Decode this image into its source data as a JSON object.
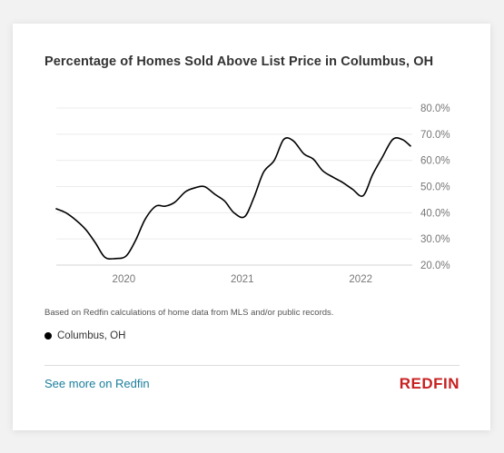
{
  "title": "Percentage of Homes Sold Above List Price in Columbus, OH",
  "note": "Based on Redfin calculations of home data from MLS and/or public records.",
  "legend": {
    "label": "Columbus, OH"
  },
  "footer": {
    "link_label": "See more on Redfin",
    "logo_text": "REDFIN",
    "logo_color": "#c82021",
    "link_color": "#1b7e9c"
  },
  "chart_data": {
    "type": "line",
    "title": "Percentage of Homes Sold Above List Price in Columbus, OH",
    "xlabel": "",
    "ylabel": "",
    "xlim": [
      2019.43,
      2022.42
    ],
    "ylim": [
      20,
      80
    ],
    "y_ticks": [
      20,
      30,
      40,
      50,
      60,
      70,
      80
    ],
    "y_tick_labels": [
      "20.0%",
      "30.0%",
      "40.0%",
      "50.0%",
      "60.0%",
      "70.0%",
      "80.0%"
    ],
    "x_ticks": [
      2020,
      2021,
      2022
    ],
    "x_tick_labels": [
      "2020",
      "2021",
      "2022"
    ],
    "y_axis_position": "right",
    "grid": true,
    "legend_position": "bottom-left",
    "series": [
      {
        "name": "Columbus, OH",
        "color": "#000000",
        "x": [
          2019.43,
          2019.51,
          2019.6,
          2019.68,
          2019.76,
          2019.84,
          2019.93,
          2020.02,
          2020.1,
          2020.18,
          2020.27,
          2020.35,
          2020.43,
          2020.52,
          2020.6,
          2020.68,
          2020.77,
          2020.85,
          2020.93,
          2021.02,
          2021.1,
          2021.18,
          2021.27,
          2021.35,
          2021.43,
          2021.52,
          2021.6,
          2021.68,
          2021.77,
          2021.85,
          2021.93,
          2022.02,
          2022.1,
          2022.18,
          2022.27,
          2022.35,
          2022.42
        ],
        "y": [
          41.5,
          40,
          37,
          33.5,
          28.5,
          23,
          22.5,
          23.5,
          29.5,
          37.5,
          42.5,
          42.5,
          44,
          48,
          49.5,
          50,
          47,
          44.5,
          40,
          38.5,
          46,
          55.5,
          60,
          68,
          67.5,
          62.5,
          60.5,
          56,
          53.5,
          51.5,
          49,
          46.5,
          54.5,
          61,
          68,
          68,
          65.5
        ]
      }
    ]
  }
}
